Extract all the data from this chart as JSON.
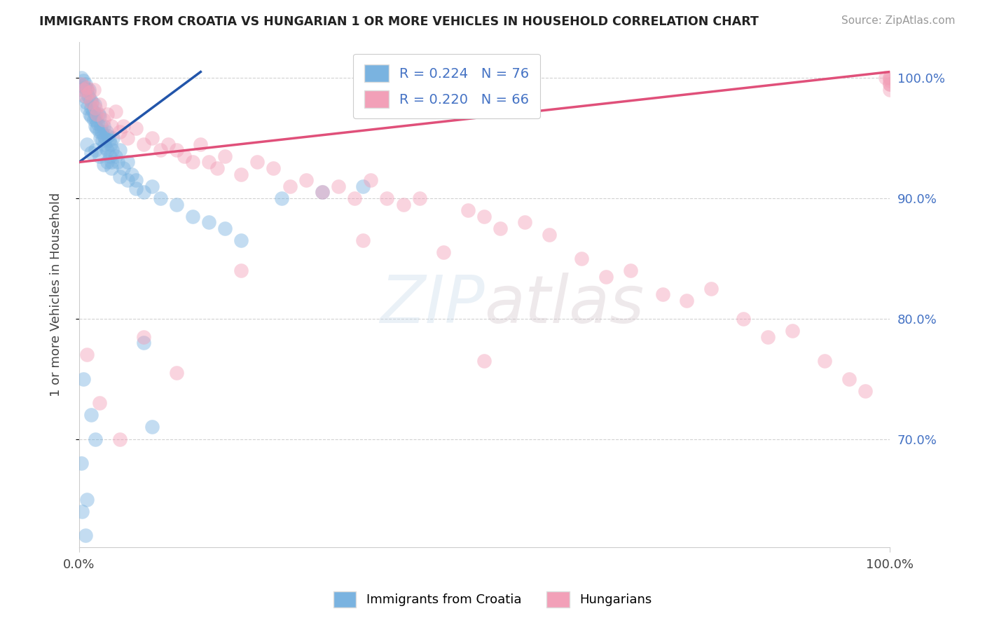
{
  "title": "IMMIGRANTS FROM CROATIA VS HUNGARIAN 1 OR MORE VEHICLES IN HOUSEHOLD CORRELATION CHART",
  "source": "Source: ZipAtlas.com",
  "ylabel": "1 or more Vehicles in Household",
  "legend_r1": "R = 0.224   N = 76",
  "legend_r2": "R = 0.220   N = 66",
  "legend_label1": "Immigrants from Croatia",
  "legend_label2": "Hungarians",
  "blue_color": "#7ab3e0",
  "pink_color": "#f2a0b8",
  "blue_line_color": "#2255aa",
  "pink_line_color": "#e0507a",
  "xlim": [
    0.0,
    100.0
  ],
  "ylim": [
    61.0,
    103.0
  ],
  "yticks": [
    70.0,
    80.0,
    90.0,
    100.0
  ],
  "blue_scatter_x": [
    0.2,
    0.3,
    0.4,
    0.5,
    0.6,
    0.7,
    0.8,
    0.9,
    1.0,
    1.0,
    1.1,
    1.2,
    1.3,
    1.4,
    1.5,
    1.5,
    1.6,
    1.7,
    1.8,
    1.9,
    2.0,
    2.0,
    2.1,
    2.2,
    2.3,
    2.4,
    2.5,
    2.5,
    2.6,
    2.7,
    2.8,
    2.9,
    3.0,
    3.0,
    3.1,
    3.2,
    3.3,
    3.4,
    3.5,
    3.6,
    3.7,
    3.8,
    3.9,
    4.0,
    4.1,
    4.2,
    4.5,
    4.8,
    5.0,
    5.5,
    6.0,
    6.5,
    7.0,
    8.0,
    9.0,
    10.0,
    12.0,
    14.0,
    16.0,
    18.0,
    20.0,
    25.0,
    30.0,
    35.0,
    1.0,
    1.5,
    2.0,
    2.5,
    3.0,
    3.5,
    4.0,
    5.0,
    6.0,
    7.0,
    8.0,
    9.0
  ],
  "blue_scatter_y": [
    99.5,
    100.0,
    99.0,
    99.8,
    98.5,
    99.2,
    99.5,
    98.0,
    99.0,
    97.5,
    98.5,
    99.0,
    97.0,
    98.2,
    97.5,
    96.8,
    98.0,
    97.2,
    96.5,
    97.8,
    96.0,
    97.0,
    96.5,
    95.8,
    96.2,
    97.0,
    95.5,
    96.8,
    95.0,
    96.0,
    95.5,
    94.8,
    95.2,
    96.0,
    94.5,
    95.0,
    94.2,
    95.5,
    94.0,
    95.2,
    94.8,
    93.5,
    94.5,
    93.0,
    94.0,
    95.0,
    93.5,
    93.0,
    94.0,
    92.5,
    93.0,
    92.0,
    91.5,
    90.5,
    91.0,
    90.0,
    89.5,
    88.5,
    88.0,
    87.5,
    86.5,
    90.0,
    90.5,
    91.0,
    94.5,
    93.8,
    94.0,
    93.5,
    92.8,
    93.0,
    92.5,
    91.8,
    91.5,
    90.8,
    78.0,
    71.0
  ],
  "blue_outlier_x": [
    0.5,
    1.5,
    0.3,
    1.0,
    2.0,
    0.4,
    0.8
  ],
  "blue_outlier_y": [
    75.0,
    72.0,
    68.0,
    65.0,
    70.0,
    64.0,
    62.0
  ],
  "pink_scatter_x": [
    0.3,
    0.5,
    0.8,
    1.0,
    1.2,
    1.5,
    1.8,
    2.0,
    2.2,
    2.5,
    3.0,
    3.5,
    4.0,
    4.5,
    5.0,
    5.5,
    6.0,
    7.0,
    8.0,
    9.0,
    10.0,
    11.0,
    12.0,
    13.0,
    14.0,
    15.0,
    16.0,
    17.0,
    18.0,
    20.0,
    22.0,
    24.0,
    26.0,
    28.0,
    30.0,
    32.0,
    34.0,
    36.0,
    38.0,
    40.0,
    42.0,
    45.0,
    48.0,
    50.0,
    52.0,
    55.0,
    58.0,
    62.0,
    65.0,
    68.0,
    72.0,
    75.0,
    78.0,
    82.0,
    85.0,
    88.0,
    92.0,
    95.0,
    97.0,
    99.5,
    100.0,
    100.0,
    100.0,
    100.0,
    100.0,
    100.0
  ],
  "pink_scatter_y": [
    99.5,
    99.0,
    98.5,
    99.2,
    98.8,
    98.0,
    99.0,
    97.5,
    97.0,
    97.8,
    96.5,
    97.0,
    96.0,
    97.2,
    95.5,
    96.0,
    95.0,
    95.8,
    94.5,
    95.0,
    94.0,
    94.5,
    94.0,
    93.5,
    93.0,
    94.5,
    93.0,
    92.5,
    93.5,
    92.0,
    93.0,
    92.5,
    91.0,
    91.5,
    90.5,
    91.0,
    90.0,
    91.5,
    90.0,
    89.5,
    90.0,
    85.5,
    89.0,
    88.5,
    87.5,
    88.0,
    87.0,
    85.0,
    83.5,
    84.0,
    82.0,
    81.5,
    82.5,
    80.0,
    78.5,
    79.0,
    76.5,
    75.0,
    74.0,
    100.0,
    100.0,
    99.5,
    100.0,
    99.8,
    99.5,
    99.0
  ],
  "pink_outlier_x": [
    1.0,
    2.5,
    5.0,
    8.0,
    12.0,
    20.0,
    35.0,
    50.0
  ],
  "pink_outlier_y": [
    77.0,
    73.0,
    70.0,
    78.5,
    75.5,
    84.0,
    86.5,
    76.5
  ],
  "blue_line_x0": 0.0,
  "blue_line_y0": 93.0,
  "blue_line_x1": 15.0,
  "blue_line_y1": 100.5,
  "pink_line_x0": 0.0,
  "pink_line_y0": 93.0,
  "pink_line_x1": 100.0,
  "pink_line_y1": 100.5
}
